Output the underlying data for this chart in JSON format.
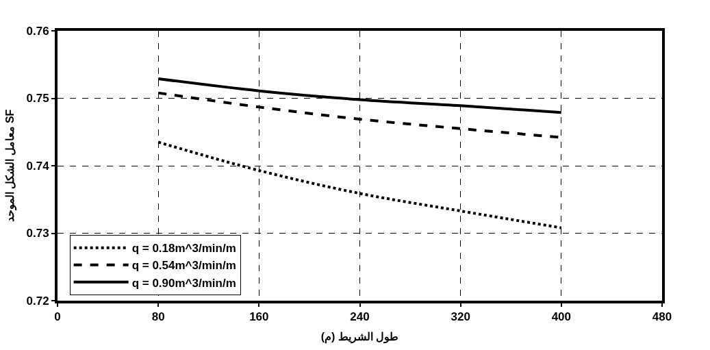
{
  "chart_data": {
    "type": "line",
    "xlabel": "طول الشريط (م)",
    "ylabel": "معامل الشكل الموحد SF",
    "x": [
      80,
      160,
      240,
      320,
      400
    ],
    "series": [
      {
        "name": "q = 0.18m^3/min/m",
        "color": "#000000",
        "line_style": "dotted",
        "values": [
          0.7435,
          0.7393,
          0.7359,
          0.7333,
          0.7308
        ]
      },
      {
        "name": "q = 0.54m^3/min/m",
        "color": "#000000",
        "line_style": "dashed",
        "values": [
          0.7508,
          0.7487,
          0.7469,
          0.7455,
          0.7442
        ]
      },
      {
        "name": "q = 0.90m^3/min/m",
        "color": "#000000",
        "line_style": "solid",
        "values": [
          0.7529,
          0.7511,
          0.7498,
          0.7489,
          0.7479
        ]
      }
    ],
    "xlim": [
      0,
      480
    ],
    "xticks": [
      0,
      80,
      160,
      240,
      320,
      400,
      480
    ],
    "ylim": [
      0.72,
      0.76
    ],
    "yticks": [
      0.72,
      0.73,
      0.74,
      0.75,
      0.76
    ],
    "grid": true,
    "legend": "bottom left",
    "marker": "none"
  }
}
